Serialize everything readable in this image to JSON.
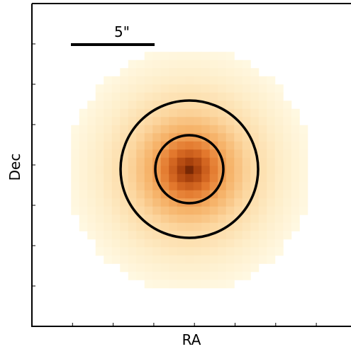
{
  "scale_bar": {
    "label": "5\""
  },
  "x_axis": {
    "label": "RA"
  },
  "y_axis": {
    "label": "Dec"
  }
}
